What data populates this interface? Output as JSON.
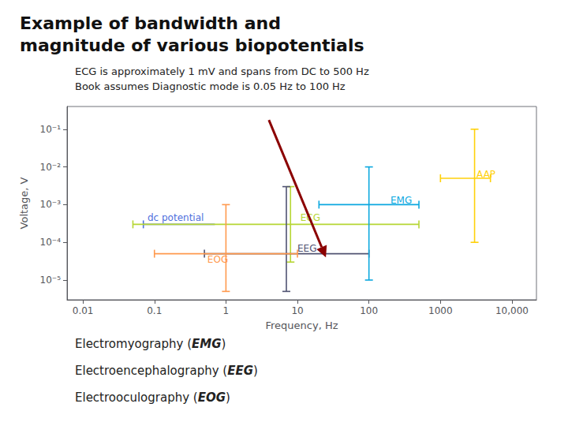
{
  "chart_data": {
    "type": "crosshair",
    "title": "Example of bandwidth and\nmagnitude of various biopotentials",
    "annotations": [
      "ECG is approximately 1 mV and spans from DC to 500 Hz",
      "Book assumes Diagnostic mode is 0.05 Hz to 100 Hz"
    ],
    "footer": [
      "Electromyography (EMG)",
      "Electroencephalography (EEG)",
      "Electrooculography (EOG)"
    ],
    "x_label": "Frequency, Hz",
    "y_label": "Voltage, V",
    "log": true,
    "grid": false,
    "xlim": [
      0.006,
      22000
    ],
    "xticks": [
      0.01,
      0.1,
      1,
      10,
      100,
      1000,
      {
        "value": 10000,
        "label": "10,000"
      }
    ],
    "ylim": [
      3e-06,
      0.4
    ],
    "yticks": [
      {
        "value": 1e-05,
        "label": "10⁻⁵"
      },
      {
        "value": 0.0001,
        "label": "10⁻⁴"
      },
      {
        "value": 0.001,
        "label": "10⁻³"
      },
      {
        "value": 0.01,
        "label": "10⁻²"
      },
      {
        "value": 0.1,
        "label": "10⁻¹"
      }
    ],
    "series": [
      {
        "name": "dc potential",
        "x_range": [
          0.07,
          0.7
        ],
        "y": 0.0003,
        "label_x": 0.08,
        "label_y": 0.00045
      },
      {
        "name": "ECG",
        "x_range": [
          0.05,
          500
        ],
        "x": 8,
        "y": 0.0003,
        "y_range": [
          3e-05,
          0.003
        ],
        "label_x": 11,
        "label_y": 0.00045
      },
      {
        "name": "EEG",
        "x_range": [
          0.5,
          100
        ],
        "x": 7,
        "y": 5e-05,
        "y_range": [
          5e-06,
          0.003
        ],
        "label_x": 10,
        "label_y": 7e-05
      },
      {
        "name": "EOG",
        "x_range": [
          0.1,
          10
        ],
        "x": 1,
        "y": 5e-05,
        "y_range": [
          5e-06,
          0.001
        ],
        "label_x": 0.55,
        "label_y": 3.5e-05
      },
      {
        "name": "EMG",
        "x_range": [
          20,
          500
        ],
        "x": 100,
        "y": 0.001,
        "y_range": [
          1e-05,
          0.01
        ],
        "label_x": 200,
        "label_y": 0.0013
      },
      {
        "name": "AAP",
        "x_range": [
          1000,
          5000
        ],
        "x": 3000,
        "y": 0.005,
        "y_range": [
          0.0001,
          0.1
        ],
        "label_x": 3200,
        "label_y": 0.0065
      }
    ],
    "arrow": {
      "x": 25,
      "y": 4e-05,
      "color": "#8b0000"
    }
  }
}
